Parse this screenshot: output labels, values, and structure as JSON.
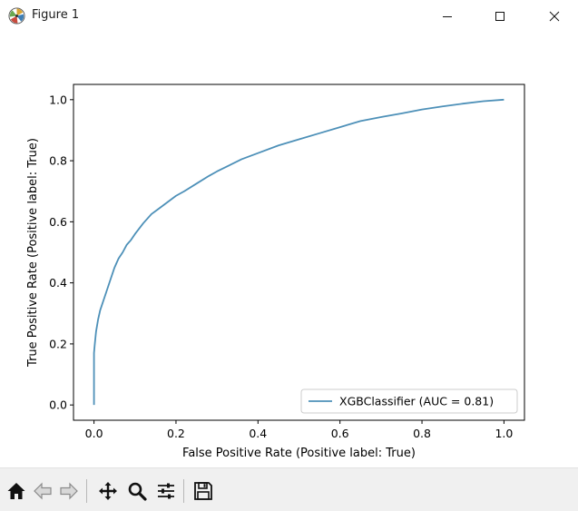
{
  "window": {
    "title": "Figure 1"
  },
  "window_controls": {
    "minimize_icon": "minimize-icon",
    "maximize_icon": "maximize-icon",
    "close_icon": "close-icon"
  },
  "toolbar": {
    "buttons": [
      {
        "name": "home-button",
        "icon": "home-icon"
      },
      {
        "name": "back-button",
        "icon": "back-arrow-icon"
      },
      {
        "name": "forward-button",
        "icon": "forward-arrow-icon"
      },
      {
        "name": "pan-button",
        "icon": "move-icon"
      },
      {
        "name": "zoom-button",
        "icon": "magnifier-icon"
      },
      {
        "name": "configure-subplots-button",
        "icon": "sliders-icon"
      },
      {
        "name": "save-button",
        "icon": "floppy-disk-icon"
      }
    ]
  },
  "chart_data": {
    "type": "line",
    "title": "",
    "xlabel": "False Positive Rate (Positive label: True)",
    "ylabel": "True Positive Rate (Positive label: True)",
    "xlim": [
      -0.05,
      1.05
    ],
    "ylim": [
      -0.05,
      1.05
    ],
    "xticks": [
      "0.0",
      "0.2",
      "0.4",
      "0.6",
      "0.8",
      "1.0"
    ],
    "yticks": [
      "0.0",
      "0.2",
      "0.4",
      "0.6",
      "0.8",
      "1.0"
    ],
    "grid": false,
    "legend_position": "lower-right",
    "series": [
      {
        "name": "XGBClassifier (AUC = 0.81)",
        "color": "#4d90b8",
        "x": [
          0.0,
          0.0,
          0.002,
          0.005,
          0.01,
          0.015,
          0.02,
          0.03,
          0.04,
          0.05,
          0.06,
          0.07,
          0.08,
          0.09,
          0.1,
          0.12,
          0.14,
          0.16,
          0.18,
          0.2,
          0.22,
          0.25,
          0.28,
          0.3,
          0.33,
          0.36,
          0.4,
          0.45,
          0.5,
          0.55,
          0.6,
          0.65,
          0.7,
          0.75,
          0.8,
          0.85,
          0.9,
          0.95,
          1.0
        ],
        "y": [
          0.0,
          0.17,
          0.2,
          0.24,
          0.28,
          0.31,
          0.33,
          0.37,
          0.41,
          0.45,
          0.48,
          0.5,
          0.525,
          0.54,
          0.56,
          0.595,
          0.625,
          0.645,
          0.665,
          0.685,
          0.7,
          0.725,
          0.75,
          0.765,
          0.785,
          0.805,
          0.825,
          0.85,
          0.87,
          0.89,
          0.91,
          0.93,
          0.943,
          0.955,
          0.968,
          0.978,
          0.987,
          0.995,
          1.0
        ]
      }
    ]
  }
}
